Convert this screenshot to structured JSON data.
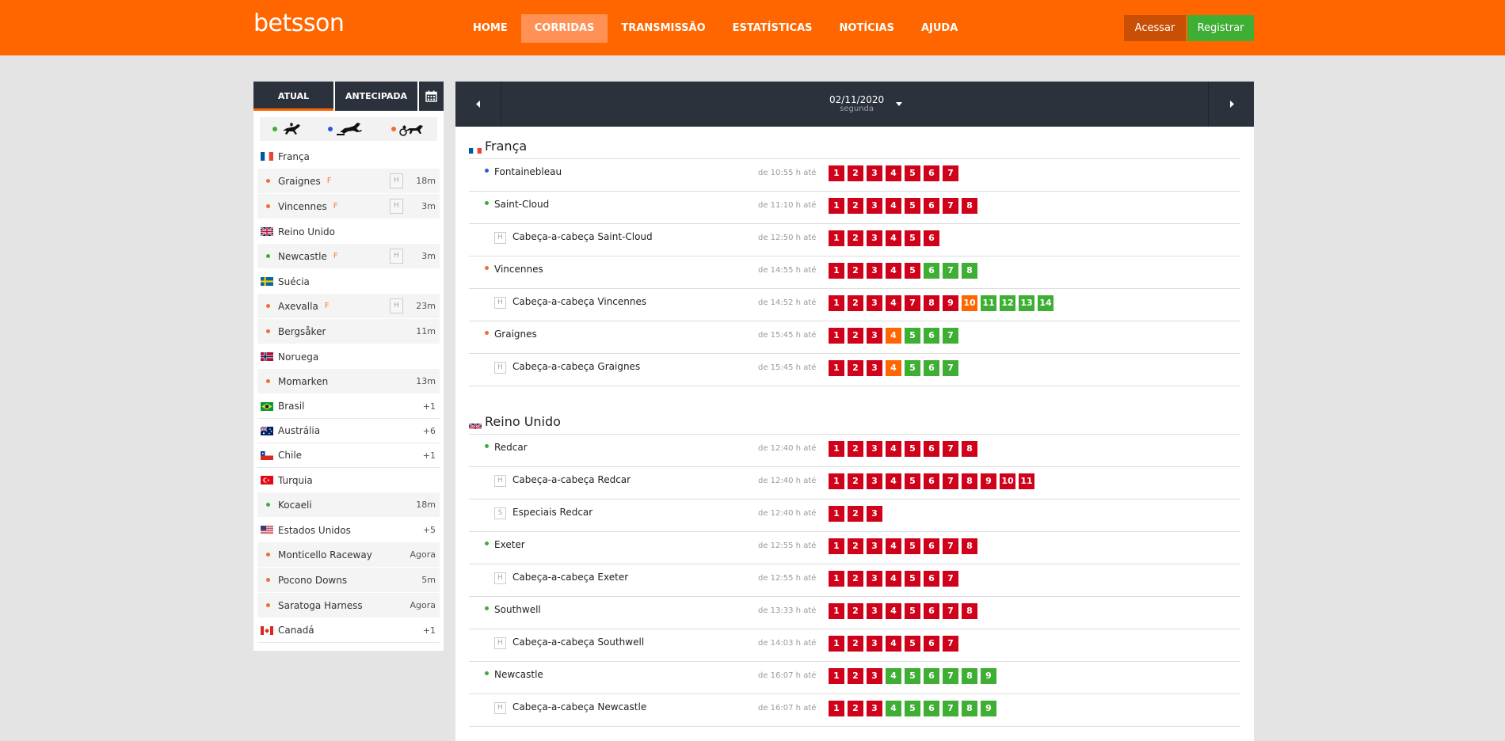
{
  "header": {
    "logo": "betsson",
    "nav": [
      "HOME",
      "CORRIDAS",
      "TRANSMISSÃO",
      "ESTATÍSTICAS",
      "NOTÍCIAS",
      "AJUDA"
    ],
    "active_nav": "CORRIDAS",
    "login_label": "Acessar",
    "register_label": "Registrar"
  },
  "colors": {
    "brand": "#ff6600",
    "green": "#3fae34",
    "red": "#d0021b",
    "dark": "#2c323c"
  },
  "sidebar": {
    "tab_current": "ATUAL",
    "tab_advance": "ANTECIPADA",
    "calendar_icon": "calendar-icon",
    "race_types": [
      "galope",
      "obstaculos",
      "trote"
    ],
    "items": [
      {
        "kind": "country",
        "label": "França",
        "flag": "fr"
      },
      {
        "kind": "track",
        "label": "Graignes",
        "dot": "#f26b3a",
        "f": "F",
        "h": "H",
        "right": "18m"
      },
      {
        "kind": "track",
        "label": "Vincennes",
        "dot": "#f26b3a",
        "f": "F",
        "h": "H",
        "right": "3m"
      },
      {
        "kind": "country",
        "label": "Reino Unido",
        "flag": "gb"
      },
      {
        "kind": "track",
        "label": "Newcastle",
        "dot": "#3fae34",
        "f": "F",
        "h": "H",
        "right": "3m"
      },
      {
        "kind": "country",
        "label": "Suécia",
        "flag": "se"
      },
      {
        "kind": "track",
        "label": "Axevalla",
        "dot": "#f26b3a",
        "f": "F",
        "h": "H",
        "right": "23m"
      },
      {
        "kind": "track",
        "label": "Bergsåker",
        "dot": "#f26b3a",
        "right": "11m"
      },
      {
        "kind": "country",
        "label": "Noruega",
        "flag": "no"
      },
      {
        "kind": "track",
        "label": "Momarken",
        "dot": "#f26b3a",
        "right": "13m"
      },
      {
        "kind": "country",
        "label": "Brasil",
        "flag": "br",
        "right": "+1"
      },
      {
        "kind": "country",
        "label": "Austrália",
        "flag": "au",
        "right": "+6"
      },
      {
        "kind": "country",
        "label": "Chile",
        "flag": "cl",
        "right": "+1"
      },
      {
        "kind": "country",
        "label": "Turquia",
        "flag": "tr"
      },
      {
        "kind": "track",
        "label": "Kocaeli",
        "dot": "#3fae34",
        "right": "18m"
      },
      {
        "kind": "country",
        "label": "Estados Unidos",
        "flag": "us",
        "right": "+5"
      },
      {
        "kind": "track",
        "label": "Monticello Raceway",
        "dot": "#f26b3a",
        "right": "Agora"
      },
      {
        "kind": "track",
        "label": "Pocono Downs",
        "dot": "#f26b3a",
        "right": "5m"
      },
      {
        "kind": "track",
        "label": "Saratoga Harness",
        "dot": "#f26b3a",
        "right": "Agora"
      },
      {
        "kind": "country",
        "label": "Canadá",
        "flag": "ca",
        "right": "+1"
      }
    ]
  },
  "datebar": {
    "date": "02/11/2020",
    "weekday": "segunda"
  },
  "sections": [
    {
      "country": "França",
      "flag": "fr",
      "meetings": [
        {
          "name": "Fontainebleau",
          "dot": "#2c5bd8",
          "time": "de 10:55 h até",
          "races": [
            "r1",
            "r2",
            "r3",
            "r4",
            "r5",
            "r6",
            "r7"
          ]
        },
        {
          "name": "Saint-Cloud",
          "dot": "#3fae34",
          "time": "de 11:10 h até",
          "races": [
            "r1",
            "r2",
            "r3",
            "r4",
            "r5",
            "r6",
            "r7",
            "r8"
          ]
        },
        {
          "name": "Cabeça-a-cabeça Saint-Cloud",
          "box": "H",
          "time": "de 12:50 h até",
          "races": [
            "r1",
            "r2",
            "r3",
            "r4",
            "r5",
            "r6"
          ]
        },
        {
          "name": "Vincennes",
          "dot": "#f26b3a",
          "time": "de 14:55 h até",
          "races": [
            "r1",
            "r2",
            "r3",
            "r4",
            "r5",
            "g6",
            "g7",
            "g8"
          ]
        },
        {
          "name": "Cabeça-a-cabeça Vincennes",
          "box": "H",
          "time": "de 14:52 h até",
          "races": [
            "r1",
            "r2",
            "r3",
            "r4",
            "r7",
            "r8",
            "r9",
            "o10",
            "g11",
            "g12",
            "g13",
            "g14"
          ]
        },
        {
          "name": "Graignes",
          "dot": "#f26b3a",
          "time": "de 15:45 h até",
          "races": [
            "r1",
            "r2",
            "r3",
            "o4",
            "g5",
            "g6",
            "g7"
          ]
        },
        {
          "name": "Cabeça-a-cabeça Graignes",
          "box": "H",
          "time": "de 15:45 h até",
          "races": [
            "r1",
            "r2",
            "r3",
            "o4",
            "g5",
            "g6",
            "g7"
          ]
        }
      ]
    },
    {
      "country": "Reino Unido",
      "flag": "gb",
      "meetings": [
        {
          "name": "Redcar",
          "dot": "#3fae34",
          "time": "de 12:40 h até",
          "races": [
            "r1",
            "r2",
            "r3",
            "r4",
            "r5",
            "r6",
            "r7",
            "r8"
          ]
        },
        {
          "name": "Cabeça-a-cabeça Redcar",
          "box": "H",
          "time": "de 12:40 h até",
          "races": [
            "r1",
            "r2",
            "r3",
            "r4",
            "r5",
            "r6",
            "r7",
            "r8",
            "r9",
            "r10",
            "r11"
          ]
        },
        {
          "name": "Especiais Redcar",
          "box": "S",
          "time": "de 12:40 h até",
          "races": [
            "r1",
            "r2",
            "r3"
          ]
        },
        {
          "name": "Exeter",
          "dot": "#3fae34",
          "time": "de 12:55 h até",
          "races": [
            "r1",
            "r2",
            "r3",
            "r4",
            "r5",
            "r6",
            "r7",
            "r8"
          ]
        },
        {
          "name": "Cabeça-a-cabeça Exeter",
          "box": "H",
          "time": "de 12:55 h até",
          "races": [
            "r1",
            "r2",
            "r3",
            "r4",
            "r5",
            "r6",
            "r7"
          ]
        },
        {
          "name": "Southwell",
          "dot": "#3fae34",
          "time": "de 13:33 h até",
          "races": [
            "r1",
            "r2",
            "r3",
            "r4",
            "r5",
            "r6",
            "r7",
            "r8"
          ]
        },
        {
          "name": "Cabeça-a-cabeça Southwell",
          "box": "H",
          "time": "de 14:03 h até",
          "races": [
            "r1",
            "r2",
            "r3",
            "r4",
            "r5",
            "r6",
            "r7"
          ]
        },
        {
          "name": "Newcastle",
          "dot": "#3fae34",
          "time": "de 16:07 h até",
          "races": [
            "r1",
            "r2",
            "r3",
            "g4",
            "g5",
            "g6",
            "g7",
            "g8",
            "g9"
          ]
        },
        {
          "name": "Cabeça-a-cabeça Newcastle",
          "box": "H",
          "time": "de 16:07 h até",
          "races": [
            "r1",
            "r2",
            "r3",
            "g4",
            "g5",
            "g6",
            "g7",
            "g8",
            "g9"
          ]
        }
      ]
    }
  ]
}
